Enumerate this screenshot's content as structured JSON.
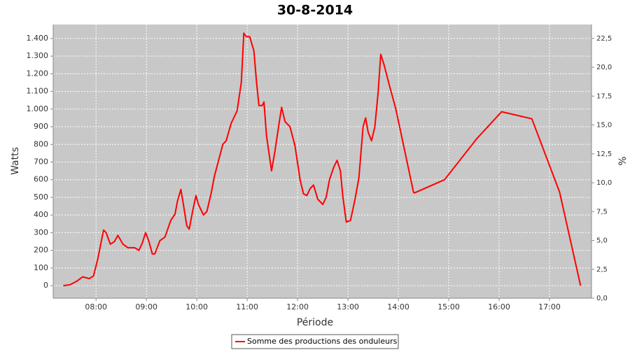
{
  "chart_data": {
    "type": "line",
    "title": "30-8-2014",
    "x_label": "Période",
    "y_label": "Watts",
    "y2_label": "%",
    "x": [
      "07:21",
      "07:29",
      "07:37",
      "07:44",
      "07:52",
      "07:57",
      "08:02",
      "08:09",
      "08:12",
      "08:17",
      "08:22",
      "08:26",
      "08:32",
      "08:38",
      "08:46",
      "08:51",
      "08:55",
      "08:59",
      "09:03",
      "09:07",
      "09:10",
      "09:16",
      "09:22",
      "09:29",
      "09:34",
      "09:37",
      "09:41",
      "09:44",
      "09:48",
      "09:51",
      "09:55",
      "09:59",
      "10:02",
      "10:08",
      "10:12",
      "10:17",
      "10:21",
      "10:26",
      "10:31",
      "10:35",
      "10:41",
      "10:48",
      "10:53",
      "10:56",
      "10:59",
      "11:03",
      "11:08",
      "11:11",
      "11:14",
      "11:18",
      "11:20",
      "11:23",
      "11:29",
      "11:33",
      "11:38",
      "11:41",
      "11:45",
      "11:51",
      "11:57",
      "12:03",
      "12:07",
      "12:11",
      "12:15",
      "12:19",
      "12:24",
      "12:30",
      "12:34",
      "12:38",
      "12:43",
      "12:47",
      "12:51",
      "12:54",
      "12:58",
      "13:03",
      "13:08",
      "13:13",
      "13:18",
      "13:21",
      "13:24",
      "13:28",
      "13:32",
      "13:36",
      "13:39",
      "13:43",
      "13:49",
      "13:57",
      "14:18",
      "14:19",
      "14:55",
      "15:33",
      "16:03",
      "16:39",
      "17:12",
      "17:37"
    ],
    "series": [
      {
        "name": "Somme des productions des onduleurs",
        "color": "#ff0000",
        "values": [
          0,
          5,
          25,
          50,
          40,
          55,
          150,
          315,
          300,
          235,
          250,
          285,
          235,
          215,
          215,
          200,
          240,
          300,
          250,
          180,
          180,
          255,
          275,
          370,
          405,
          480,
          545,
          460,
          340,
          320,
          420,
          510,
          460,
          400,
          420,
          520,
          620,
          710,
          800,
          820,
          920,
          990,
          1150,
          1430,
          1410,
          1410,
          1330,
          1160,
          1020,
          1020,
          1040,
          850,
          650,
          760,
          920,
          1010,
          930,
          900,
          790,
          600,
          520,
          510,
          550,
          570,
          490,
          460,
          500,
          600,
          670,
          710,
          650,
          500,
          360,
          370,
          480,
          610,
          900,
          950,
          870,
          820,
          900,
          1100,
          1310,
          1250,
          1140,
          1000,
          530,
          525,
          600,
          830,
          985,
          945,
          530,
          0
        ]
      }
    ],
    "xlim": [
      "07:09",
      "17:50"
    ],
    "xticks": [
      "08:00",
      "09:00",
      "10:00",
      "11:00",
      "12:00",
      "13:00",
      "14:00",
      "15:00",
      "16:00",
      "17:00"
    ],
    "ylim": [
      -71,
      1479
    ],
    "yticks": [
      0,
      100,
      200,
      300,
      400,
      500,
      600,
      700,
      800,
      900,
      {
        "value": 1000,
        "label": "1.000"
      },
      {
        "value": 1100,
        "label": "1.100"
      },
      {
        "value": 1200,
        "label": "1.200"
      },
      {
        "value": 1300,
        "label": "1.300"
      },
      {
        "value": 1400,
        "label": "1.400"
      }
    ],
    "y2lim": [
      0,
      23.7
    ],
    "y2ticks": [
      {
        "value": 0,
        "label": "0,0"
      },
      {
        "value": 2.5,
        "label": "2,5"
      },
      {
        "value": 5,
        "label": "5,0"
      },
      {
        "value": 7.5,
        "label": "7,5"
      },
      {
        "value": 10,
        "label": "10,0"
      },
      {
        "value": 12.5,
        "label": "12,5"
      },
      {
        "value": 15,
        "label": "15,0"
      },
      {
        "value": 17.5,
        "label": "17,5"
      },
      {
        "value": 20,
        "label": "20,0"
      },
      {
        "value": 22.5,
        "label": "22,5"
      }
    ],
    "grid": true
  }
}
